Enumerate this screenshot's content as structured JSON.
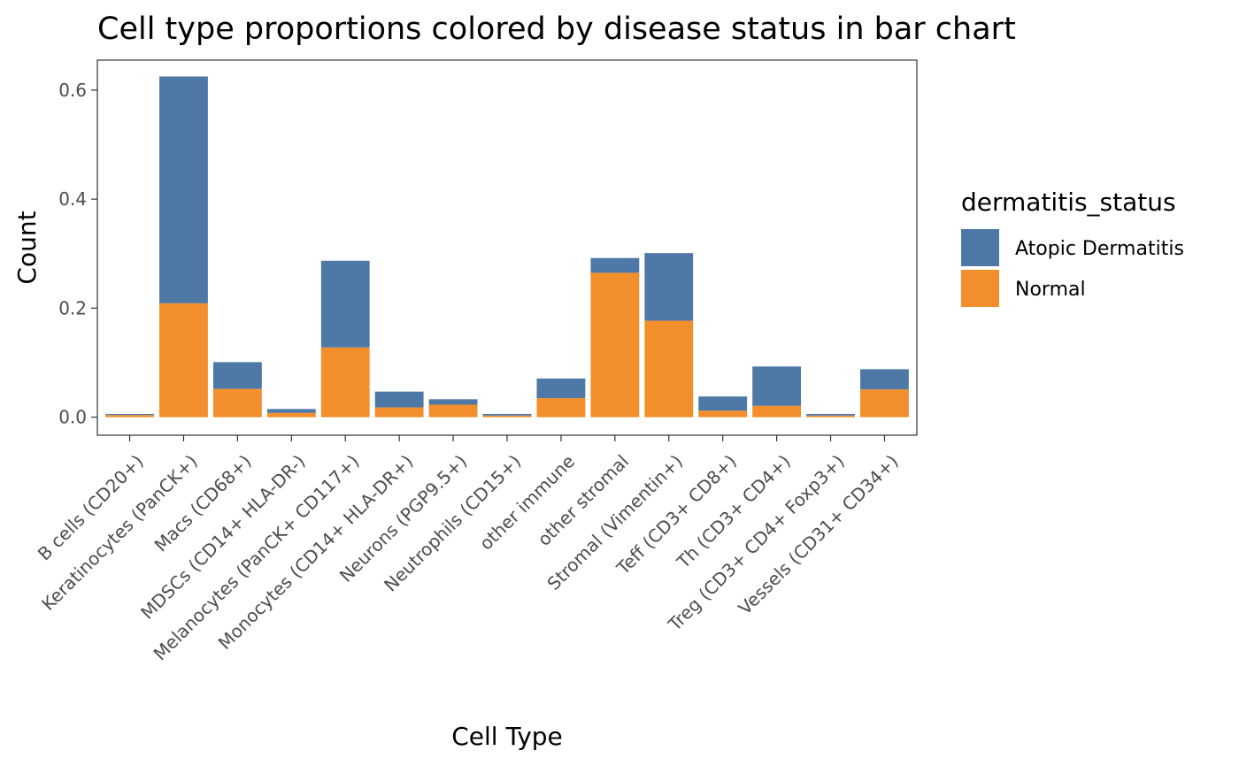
{
  "chart_data": {
    "type": "bar",
    "stacked": true,
    "title": "Cell type proportions colored by disease status in bar chart",
    "xlabel": "Cell Type",
    "ylabel": "Count",
    "ylim": [
      -0.033,
      0.655
    ],
    "yticks": [
      0.0,
      0.2,
      0.4,
      0.6
    ],
    "ytick_labels": [
      "0.0",
      "0.2",
      "0.4",
      "0.6"
    ],
    "grid": false,
    "legend": {
      "title": "dermatitis_status",
      "position": "right"
    },
    "categories": [
      "B cells (CD20+)",
      "Keratinocytes (PanCK+)",
      "Macs (CD68+)",
      "MDSCs (CD14+ HLA-DR-)",
      "Melanocytes (PanCK+ CD117+)",
      "Monocytes (CD14+ HLA-DR+)",
      "Neurons (PGP9.5+)",
      "Neutrophils (CD15+)",
      "other immune",
      "other stromal",
      "Stromal (Vimentin+)",
      "Teff (CD3+ CD8+)",
      "Th (CD3+ CD4+)",
      "Treg (CD3+ CD4+ Foxp3+)",
      "Vessels (CD31+ CD34+)"
    ],
    "series": [
      {
        "name": "Atopic Dermatitis",
        "color": "#4E79A7",
        "values": [
          0.002,
          0.416,
          0.049,
          0.007,
          0.159,
          0.029,
          0.01,
          0.003,
          0.036,
          0.027,
          0.124,
          0.026,
          0.072,
          0.003,
          0.037
        ]
      },
      {
        "name": "Normal",
        "color": "#F28E2B",
        "values": [
          0.004,
          0.209,
          0.052,
          0.008,
          0.128,
          0.018,
          0.023,
          0.003,
          0.035,
          0.265,
          0.177,
          0.012,
          0.021,
          0.003,
          0.051
        ]
      }
    ]
  }
}
